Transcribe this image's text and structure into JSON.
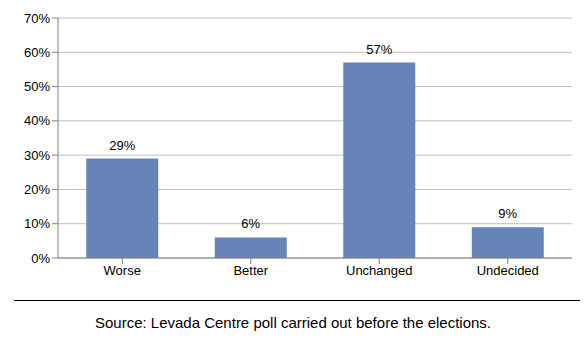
{
  "chart_data": {
    "type": "bar",
    "categories": [
      "Worse",
      "Better",
      "Unchanged",
      "Undecided"
    ],
    "values": [
      29,
      6,
      57,
      9
    ],
    "value_labels": [
      "29%",
      "6%",
      "57%",
      "9%"
    ],
    "data_labels": true,
    "color": "#6684b8",
    "ylim": [
      0,
      70
    ],
    "yticks": [
      {
        "value": 0,
        "label": "0%"
      },
      {
        "value": 10,
        "label": "10%"
      },
      {
        "value": 20,
        "label": "20%"
      },
      {
        "value": 30,
        "label": "30%"
      },
      {
        "value": 40,
        "label": "40%"
      },
      {
        "value": 50,
        "label": "50%"
      },
      {
        "value": 60,
        "label": "60%"
      },
      {
        "value": 70,
        "label": "70%"
      }
    ],
    "grid": true,
    "caption": "Source: Levada Centre poll carried out before the elections."
  }
}
